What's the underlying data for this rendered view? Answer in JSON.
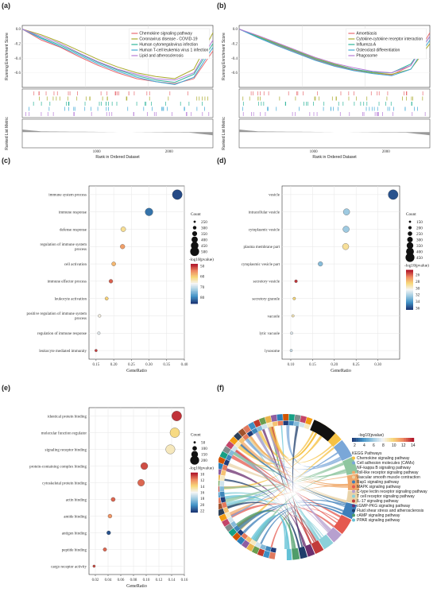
{
  "panels": {
    "a": "(a)",
    "b": "(b)",
    "c": "(c)",
    "d": "(d)",
    "e": "(e)",
    "f": "(f)"
  },
  "chart_data": [
    {
      "id": "a",
      "type": "line",
      "ylabel_top": "Running Enrichment Score",
      "ylabel_bottom": "Ranked List Metric",
      "xlabel": "Rank in Ordered Dataset",
      "xticks": [
        "1000",
        "2000"
      ],
      "series": [
        {
          "name": "Chemokine signaling pathway",
          "color": "#e86a70",
          "values": [
            0,
            -0.15,
            -0.25,
            -0.38,
            -0.5,
            -0.6,
            -0.68,
            -0.72,
            -0.75,
            -0.68,
            -0.3
          ]
        },
        {
          "name": "Coronavirus disease - COVID-19",
          "color": "#a9a92a",
          "values": [
            0,
            -0.08,
            -0.18,
            -0.3,
            -0.42,
            -0.52,
            -0.6,
            -0.65,
            -0.68,
            -0.55,
            -0.05
          ]
        },
        {
          "name": "Human cytomegalovirus infection",
          "color": "#2fb59a",
          "values": [
            0,
            -0.12,
            -0.22,
            -0.34,
            -0.46,
            -0.56,
            -0.64,
            -0.7,
            -0.73,
            -0.62,
            -0.2
          ]
        },
        {
          "name": "Human T-cell leukemia virus 1 infection",
          "color": "#3fa9d6",
          "values": [
            0,
            -0.13,
            -0.24,
            -0.36,
            -0.48,
            -0.58,
            -0.66,
            -0.72,
            -0.76,
            -0.66,
            -0.25
          ]
        },
        {
          "name": "Lipid and atherosclerosis",
          "color": "#b57ad6",
          "values": [
            0,
            -0.1,
            -0.2,
            -0.33,
            -0.45,
            -0.55,
            -0.62,
            -0.68,
            -0.7,
            -0.6,
            -0.15
          ]
        }
      ]
    },
    {
      "id": "b",
      "type": "line",
      "ylabel_top": "Running Enrichment Score",
      "ylabel_bottom": "Ranked List Metric",
      "xlabel": "Rank in Ordered Dataset",
      "xticks": [
        "1000",
        "2000"
      ],
      "series": [
        {
          "name": "Amoebiasis",
          "color": "#e86a70",
          "values": [
            0,
            -0.12,
            -0.22,
            -0.32,
            -0.42,
            -0.5,
            -0.56,
            -0.6,
            -0.63,
            -0.5,
            -0.05
          ]
        },
        {
          "name": "Cytokine-cytokine receptor interaction",
          "color": "#a9a92a",
          "values": [
            0,
            -0.1,
            -0.2,
            -0.3,
            -0.4,
            -0.48,
            -0.55,
            -0.6,
            -0.62,
            -0.55,
            -0.2
          ]
        },
        {
          "name": "Influenza A",
          "color": "#2fb59a",
          "values": [
            0,
            -0.11,
            -0.21,
            -0.31,
            -0.41,
            -0.49,
            -0.55,
            -0.59,
            -0.6,
            -0.48,
            -0.1
          ]
        },
        {
          "name": "Osteoclast differentiation",
          "color": "#3fa9d6",
          "values": [
            0,
            -0.12,
            -0.23,
            -0.33,
            -0.43,
            -0.51,
            -0.57,
            -0.61,
            -0.64,
            -0.55,
            -0.15
          ]
        },
        {
          "name": "Phagosome",
          "color": "#b57ad6",
          "values": [
            0,
            -0.09,
            -0.19,
            -0.29,
            -0.39,
            -0.47,
            -0.53,
            -0.58,
            -0.6,
            -0.5,
            -0.1
          ]
        }
      ]
    },
    {
      "id": "c",
      "type": "scatter",
      "xlabel": "GeneRatio",
      "xlim": [
        0.13,
        0.4
      ],
      "xticks": [
        "0.15",
        "0.20",
        "0.25",
        "0.30",
        "0.35",
        "0.40"
      ],
      "categories": [
        "immune system process",
        "immune response",
        "defense response",
        "regulation of immune system process",
        "cell activation",
        "immune effector process",
        "leukocyte activation",
        "positive regulation of immune system process",
        "regulation of immune response",
        "leukocyte mediated immunity"
      ],
      "x": [
        0.38,
        0.3,
        0.227,
        0.225,
        0.2,
        0.192,
        0.18,
        0.16,
        0.158,
        0.15
      ],
      "count": [
        510,
        430,
        320,
        310,
        290,
        280,
        260,
        245,
        240,
        230
      ],
      "pvalue": [
        85,
        82,
        62,
        56,
        58,
        52,
        60,
        66,
        68,
        50
      ],
      "size_legend": {
        "title": "Count",
        "values": [
          "250",
          "300",
          "350",
          "400",
          "450",
          "500"
        ]
      },
      "color_legend": {
        "title": "-log10(pvalue)",
        "ticks": [
          "50",
          "60",
          "70",
          "80"
        ],
        "range": [
          48,
          86
        ]
      }
    },
    {
      "id": "d",
      "type": "scatter",
      "xlabel": "GeneRatio",
      "xlim": [
        0.08,
        0.35
      ],
      "xticks": [
        "0.10",
        "0.15",
        "0.20",
        "0.25",
        "0.30"
      ],
      "categories": [
        "vesicle",
        "intracellular vesicle",
        "cytoplasmic vesicle",
        "plasma membrane part",
        "cytoplasmic vesicle part",
        "secretory vesicle",
        "secretory granule",
        "vacuole",
        "lytic vacuole",
        "lysosome"
      ],
      "x": [
        0.335,
        0.228,
        0.227,
        0.226,
        0.168,
        0.112,
        0.108,
        0.105,
        0.102,
        0.101
      ],
      "count": [
        470,
        320,
        318,
        316,
        240,
        165,
        160,
        155,
        150,
        150
      ],
      "pvalue": [
        36,
        32.5,
        32.5,
        29,
        33,
        25,
        28.5,
        29.5,
        31,
        31.5
      ],
      "size_legend": {
        "title": "Count",
        "values": [
          "150",
          "200",
          "250",
          "300",
          "350",
          "400",
          "450"
        ]
      },
      "color_legend": {
        "title": "-log10(pvalue)",
        "ticks": [
          "26",
          "28",
          "30",
          "32",
          "34",
          "36"
        ],
        "range": [
          24.5,
          36.5
        ]
      }
    },
    {
      "id": "e",
      "type": "scatter",
      "xlabel": "GeneRatio",
      "xlim": [
        0.01,
        0.16
      ],
      "xticks": [
        "0.02",
        "0.04",
        "0.06",
        "0.08",
        "0.10",
        "0.12",
        "0.14",
        "0.16"
      ],
      "categories": [
        "identical protein binding",
        "molecular function regulator",
        "signaling receptor binding",
        "protein-containing complex binding",
        "cytoskeletal protein binding",
        "actin binding",
        "amide binding",
        "antigen binding",
        "peptide binding",
        "cargo receptor activity"
      ],
      "x": [
        0.148,
        0.145,
        0.138,
        0.097,
        0.092,
        0.048,
        0.043,
        0.041,
        0.035,
        0.018
      ],
      "count": [
        210,
        205,
        195,
        140,
        135,
        70,
        65,
        63,
        55,
        30
      ],
      "pvalue": [
        10,
        14,
        15,
        10.5,
        11,
        11,
        12,
        22,
        11,
        10.5
      ],
      "size_legend": {
        "title": "Count",
        "values": [
          "50",
          "100",
          "150",
          "200"
        ]
      },
      "color_legend": {
        "title": "-log10(pvalue)",
        "ticks": [
          "10",
          "12",
          "14",
          "16",
          "18",
          "20",
          "22"
        ],
        "range": [
          9.5,
          22.5
        ]
      }
    },
    {
      "id": "f",
      "type": "chord",
      "color_legend": {
        "title": "-log10(pvalue)",
        "ticks": [
          "2",
          "4",
          "6",
          "8",
          "10",
          "12",
          "14"
        ]
      },
      "legend_title": "KEGG Pathways",
      "pathways": [
        {
          "name": "Chemokine signaling pathway",
          "color": "#f6c244"
        },
        {
          "name": "Cell adhesion molecules (CAMs)",
          "color": "#7aa7d8"
        },
        {
          "name": "NF-kappa B signaling pathway",
          "color": "#8fc6a0"
        },
        {
          "name": "Toll-like receptor signaling pathway",
          "color": "#f0a86a"
        },
        {
          "name": "Vascular smooth muscle contraction",
          "color": "#e9d3a8"
        },
        {
          "name": "Rap1 signaling pathway",
          "color": "#3e7fba"
        },
        {
          "name": "MAPK signaling pathway",
          "color": "#e5594f"
        },
        {
          "name": "C-type lectin receptor signaling pathway",
          "color": "#b7a0cf"
        },
        {
          "name": "T cell receptor signaling pathway",
          "color": "#8bd0d9"
        },
        {
          "name": "IL-17 signaling pathway",
          "color": "#c23b3b"
        },
        {
          "name": "cGMP-PKG signaling pathway",
          "color": "#6b2f6f"
        },
        {
          "name": "Fluid shear stress and atherosclerosis",
          "color": "#1f3d6b"
        },
        {
          "name": "cAMP signaling pathway",
          "color": "#4f9d6a"
        },
        {
          "name": "PPAR signaling pathway",
          "color": "#63c1d6"
        }
      ]
    }
  ]
}
